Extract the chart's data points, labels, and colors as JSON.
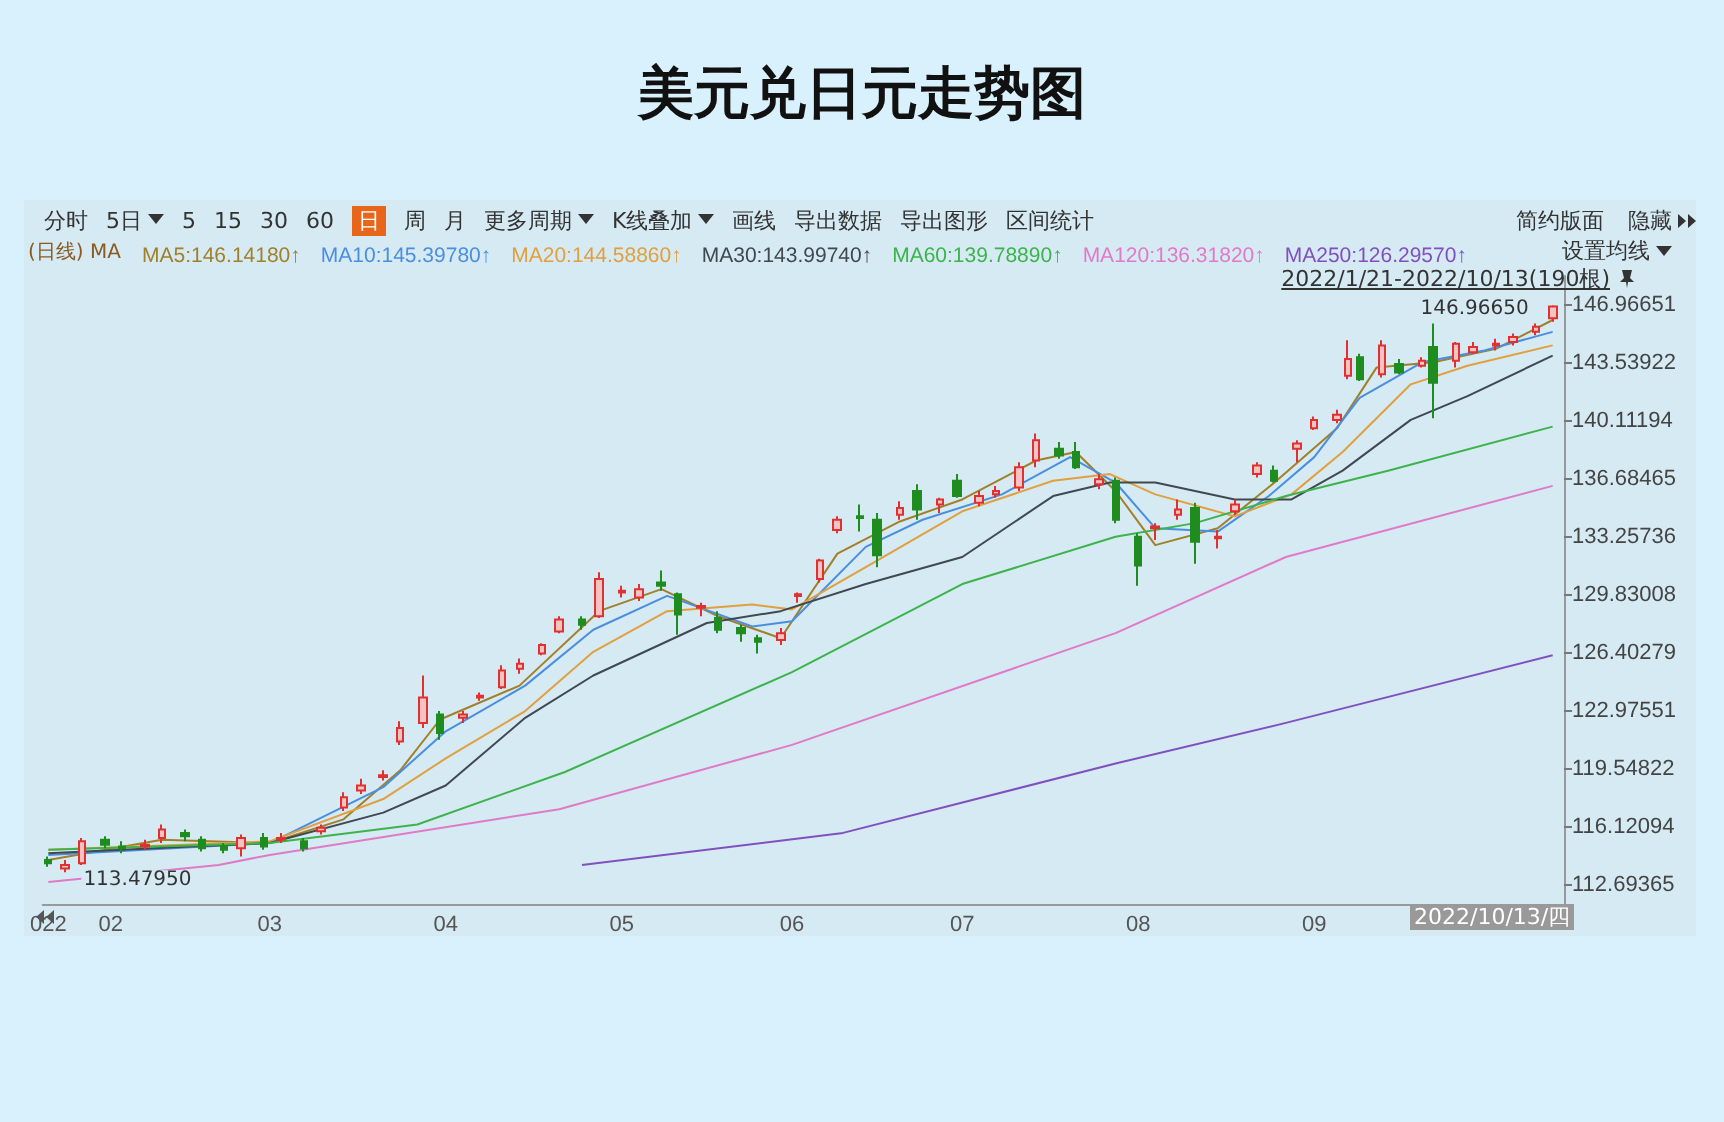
{
  "chart_data": {
    "type": "candlestick",
    "title": "美元兑日元走势图",
    "x": [
      "2022-01-21",
      "2022-01-24",
      "2022-01-27",
      "2022-01-31",
      "2022-02-03",
      "2022-02-07",
      "2022-02-10",
      "2022-02-14",
      "2022-02-17",
      "2022-02-21",
      "2022-02-24",
      "2022-02-28",
      "2022-03-03",
      "2022-03-07",
      "2022-03-10",
      "2022-03-14",
      "2022-03-17",
      "2022-03-21",
      "2022-03-24",
      "2022-03-28",
      "2022-03-31",
      "2022-04-04",
      "2022-04-07",
      "2022-04-11",
      "2022-04-14",
      "2022-04-18",
      "2022-04-21",
      "2022-04-25",
      "2022-04-28",
      "2022-05-02",
      "2022-05-05",
      "2022-05-09",
      "2022-05-12",
      "2022-05-16",
      "2022-05-19",
      "2022-05-23",
      "2022-05-26",
      "2022-05-30",
      "2022-06-02",
      "2022-06-06",
      "2022-06-09",
      "2022-06-13",
      "2022-06-16",
      "2022-06-20",
      "2022-06-23",
      "2022-06-27",
      "2022-06-30",
      "2022-07-04",
      "2022-07-07",
      "2022-07-11",
      "2022-07-14",
      "2022-07-18",
      "2022-07-21",
      "2022-07-25",
      "2022-07-28",
      "2022-08-01",
      "2022-08-04",
      "2022-08-08",
      "2022-08-11",
      "2022-08-15",
      "2022-08-18",
      "2022-08-22",
      "2022-08-25",
      "2022-08-29",
      "2022-09-01",
      "2022-09-05",
      "2022-09-07",
      "2022-09-09",
      "2022-09-13",
      "2022-09-16",
      "2022-09-20",
      "2022-09-22",
      "2022-09-26",
      "2022-09-29",
      "2022-10-03",
      "2022-10-06",
      "2022-10-10",
      "2022-10-13"
    ],
    "ohlc": [
      [
        114.2,
        114.4,
        113.8,
        114.0
      ],
      [
        113.7,
        114.2,
        113.4795,
        113.9
      ],
      [
        114.0,
        115.5,
        113.9,
        115.3
      ],
      [
        115.4,
        115.6,
        114.9,
        115.1
      ],
      [
        115.0,
        115.3,
        114.6,
        114.9
      ],
      [
        115.0,
        115.4,
        114.8,
        115.1
      ],
      [
        115.5,
        116.3,
        115.2,
        116.0
      ],
      [
        115.8,
        116.0,
        115.3,
        115.6
      ],
      [
        115.4,
        115.6,
        114.7,
        114.9
      ],
      [
        115.0,
        115.2,
        114.6,
        114.8
      ],
      [
        114.9,
        115.7,
        114.4,
        115.5
      ],
      [
        115.5,
        115.8,
        114.8,
        115.0
      ],
      [
        115.4,
        115.8,
        115.2,
        115.5
      ],
      [
        115.3,
        115.5,
        114.7,
        114.9
      ],
      [
        115.9,
        116.3,
        115.7,
        116.1
      ],
      [
        117.3,
        118.2,
        117.1,
        117.9
      ],
      [
        118.3,
        119.0,
        118.1,
        118.6
      ],
      [
        119.1,
        119.5,
        118.9,
        119.2
      ],
      [
        121.2,
        122.4,
        121.0,
        122.0
      ],
      [
        122.3,
        125.1,
        122.0,
        123.8
      ],
      [
        122.8,
        123.0,
        121.3,
        121.7
      ],
      [
        122.6,
        123.0,
        122.3,
        122.8
      ],
      [
        123.8,
        124.1,
        123.6,
        123.9
      ],
      [
        124.4,
        125.7,
        124.3,
        125.4
      ],
      [
        125.5,
        126.1,
        125.2,
        125.8
      ],
      [
        126.4,
        127.0,
        126.3,
        126.9
      ],
      [
        127.7,
        128.6,
        127.6,
        128.4
      ],
      [
        128.4,
        128.6,
        127.8,
        128.1
      ],
      [
        128.6,
        131.2,
        128.5,
        130.8
      ],
      [
        130.0,
        130.4,
        129.7,
        130.1
      ],
      [
        129.7,
        130.5,
        129.5,
        130.2
      ],
      [
        130.6,
        131.3,
        130.1,
        130.4
      ],
      [
        129.9,
        130.0,
        127.5,
        128.7
      ],
      [
        129.1,
        129.4,
        128.6,
        129.2
      ],
      [
        128.5,
        128.9,
        127.6,
        127.8
      ],
      [
        127.9,
        128.1,
        127.1,
        127.6
      ],
      [
        127.3,
        127.5,
        126.4,
        127.1
      ],
      [
        127.2,
        127.9,
        126.9,
        127.6
      ],
      [
        129.8,
        130.0,
        129.4,
        129.9
      ],
      [
        130.8,
        132.0,
        130.6,
        131.9
      ],
      [
        133.7,
        134.5,
        133.5,
        134.3
      ],
      [
        134.5,
        135.2,
        133.6,
        134.4
      ],
      [
        134.3,
        134.7,
        131.5,
        132.2
      ],
      [
        134.6,
        135.4,
        134.3,
        135.0
      ],
      [
        136.0,
        136.4,
        134.3,
        134.9
      ],
      [
        135.2,
        135.6,
        134.7,
        135.5
      ],
      [
        136.6,
        137.0,
        135.6,
        135.7
      ],
      [
        135.3,
        136.0,
        135.1,
        135.7
      ],
      [
        135.8,
        136.3,
        135.6,
        136.0
      ],
      [
        136.2,
        137.7,
        136.0,
        137.4
      ],
      [
        137.8,
        139.4,
        137.4,
        139.0
      ],
      [
        138.5,
        138.9,
        137.9,
        138.1
      ],
      [
        138.3,
        138.9,
        137.3,
        137.4
      ],
      [
        136.4,
        137.0,
        136.1,
        136.7
      ],
      [
        136.6,
        136.8,
        134.1,
        134.3
      ],
      [
        133.3,
        133.5,
        130.4,
        131.6
      ],
      [
        133.8,
        134.1,
        133.1,
        133.9
      ],
      [
        134.6,
        135.5,
        134.3,
        134.9
      ],
      [
        135.0,
        135.3,
        131.7,
        133.0
      ],
      [
        133.2,
        133.7,
        132.6,
        133.3
      ],
      [
        134.8,
        135.5,
        134.6,
        135.2
      ],
      [
        137.0,
        137.7,
        136.8,
        137.5
      ],
      [
        137.2,
        137.5,
        136.5,
        136.6
      ],
      [
        138.5,
        139.0,
        137.7,
        138.8
      ],
      [
        139.7,
        140.4,
        139.6,
        140.2
      ],
      [
        140.2,
        140.8,
        140.0,
        140.5
      ],
      [
        142.8,
        144.9,
        142.6,
        143.8
      ],
      [
        143.9,
        144.1,
        142.5,
        142.6
      ],
      [
        142.9,
        144.9,
        142.7,
        144.6
      ],
      [
        143.5,
        143.8,
        142.9,
        143.0
      ],
      [
        143.4,
        143.9,
        143.3,
        143.7
      ],
      [
        144.5,
        145.9,
        140.3,
        142.4
      ],
      [
        143.7,
        144.8,
        143.3,
        144.7
      ],
      [
        144.2,
        144.8,
        144.1,
        144.5
      ],
      [
        144.6,
        145.0,
        144.3,
        144.7
      ],
      [
        144.8,
        145.3,
        144.6,
        145.1
      ],
      [
        145.4,
        145.9,
        145.2,
        145.7
      ],
      [
        146.2,
        146.9665,
        146.0,
        146.9
      ]
    ],
    "series": [
      {
        "type": "line",
        "name": "MA5:146.14180↑",
        "color": "#a0802a",
        "x": [
          "2022-01-21",
          "2022-02-10",
          "2022-03-01",
          "2022-03-14",
          "2022-03-24",
          "2022-03-31",
          "2022-04-14",
          "2022-04-28",
          "2022-05-09",
          "2022-05-19",
          "2022-05-30",
          "2022-06-09",
          "2022-06-20",
          "2022-07-01",
          "2022-07-14",
          "2022-07-21",
          "2022-07-28",
          "2022-08-04",
          "2022-08-15",
          "2022-08-25",
          "2022-09-05",
          "2022-09-12",
          "2022-09-22",
          "2022-10-03",
          "2022-10-13"
        ],
        "values": [
          114.2,
          115.4,
          115.2,
          116.6,
          119.5,
          122.5,
          124.5,
          128.9,
          130.2,
          128.6,
          127.3,
          132.3,
          134.2,
          135.5,
          137.8,
          138.3,
          136.0,
          132.8,
          133.8,
          136.5,
          139.7,
          143.3,
          143.6,
          144.4,
          146.1
        ]
      },
      {
        "type": "line",
        "name": "MA10:145.39780↑",
        "color": "#4a8ee0",
        "x": [
          "2022-01-21",
          "2022-03-01",
          "2022-03-21",
          "2022-04-01",
          "2022-04-15",
          "2022-04-27",
          "2022-05-10",
          "2022-05-25",
          "2022-06-01",
          "2022-06-14",
          "2022-06-24",
          "2022-07-08",
          "2022-07-20",
          "2022-07-28",
          "2022-08-04",
          "2022-08-15",
          "2022-08-24",
          "2022-09-01",
          "2022-09-09",
          "2022-09-20",
          "2022-10-01",
          "2022-10-13"
        ],
        "values": [
          114.5,
          115.2,
          118.5,
          121.8,
          124.5,
          127.8,
          129.8,
          128.0,
          128.3,
          132.7,
          134.3,
          135.8,
          138.0,
          136.5,
          133.8,
          133.6,
          135.7,
          138.0,
          141.5,
          143.6,
          144.3,
          145.4
        ]
      },
      {
        "type": "line",
        "name": "MA20:144.58860↑",
        "color": "#e0a040",
        "x": [
          "2022-01-21",
          "2022-03-01",
          "2022-03-21",
          "2022-04-01",
          "2022-04-15",
          "2022-04-27",
          "2022-05-10",
          "2022-05-25",
          "2022-06-01",
          "2022-06-14",
          "2022-07-01",
          "2022-07-17",
          "2022-07-27",
          "2022-08-04",
          "2022-08-18",
          "2022-08-28",
          "2022-09-06",
          "2022-09-18",
          "2022-09-28",
          "2022-10-13"
        ],
        "values": [
          114.8,
          115.3,
          117.8,
          120.2,
          123.0,
          126.5,
          128.9,
          129.3,
          129.0,
          131.5,
          134.8,
          136.6,
          137.0,
          135.8,
          134.5,
          135.8,
          138.3,
          142.3,
          143.4,
          144.6
        ]
      },
      {
        "type": "line",
        "name": "MA30:143.99740↑",
        "color": "#404850",
        "x": [
          "2022-01-21",
          "2022-02-15",
          "2022-03-01",
          "2022-03-21",
          "2022-04-01",
          "2022-04-15",
          "2022-04-27",
          "2022-05-17",
          "2022-05-30",
          "2022-06-14",
          "2022-07-01",
          "2022-07-17",
          "2022-07-27",
          "2022-08-04",
          "2022-08-18",
          "2022-08-28",
          "2022-09-06",
          "2022-09-18",
          "2022-09-28",
          "2022-10-13"
        ],
        "values": [
          114.6,
          115.0,
          115.2,
          117.0,
          118.6,
          122.6,
          125.1,
          128.2,
          128.9,
          130.5,
          132.1,
          135.7,
          136.5,
          136.5,
          135.5,
          135.5,
          137.2,
          140.2,
          141.6,
          144.0
        ]
      },
      {
        "type": "line",
        "name": "MA60:139.78890↑",
        "color": "#3cb44b",
        "x": [
          "2022-01-21",
          "2022-03-01",
          "2022-03-27",
          "2022-04-22",
          "2022-06-01",
          "2022-07-01",
          "2022-07-28",
          "2022-08-11",
          "2022-08-27",
          "2022-09-14",
          "2022-10-13"
        ],
        "values": [
          114.8,
          115.2,
          116.3,
          119.4,
          125.3,
          130.5,
          133.3,
          134.1,
          135.7,
          137.2,
          139.8
        ]
      },
      {
        "type": "line",
        "name": "MA120:136.31820↑",
        "color": "#e07ac8",
        "x": [
          "2022-01-21",
          "2022-02-20",
          "2022-03-01",
          "2022-04-21",
          "2022-06-01",
          "2022-07-28",
          "2022-08-27",
          "2022-10-13"
        ],
        "values": [
          112.9,
          113.9,
          114.5,
          117.2,
          121.0,
          127.6,
          132.1,
          136.3
        ]
      },
      {
        "type": "line",
        "name": "MA250:126.29570↑",
        "color": "#8050c0",
        "x": [
          "2022-04-25",
          "2022-06-10",
          "2022-07-28",
          "2022-08-27",
          "2022-10-13"
        ],
        "values": [
          113.9,
          115.8,
          119.9,
          122.3,
          126.3
        ]
      }
    ],
    "marker": "none",
    "legend": "top left",
    "xlim": [
      "2022-01-20",
      "2022-10-15"
    ],
    "xticks": [
      {
        "value": "2022-01-21",
        "label": "022"
      },
      {
        "value": "2022-02-01",
        "label": "02"
      },
      {
        "value": "2022-03-01",
        "label": "03"
      },
      {
        "value": "2022-04-01",
        "label": "04"
      },
      {
        "value": "2022-05-02",
        "label": "05"
      },
      {
        "value": "2022-06-01",
        "label": "06"
      },
      {
        "value": "2022-07-01",
        "label": "07"
      },
      {
        "value": "2022-08-01",
        "label": "08"
      },
      {
        "value": "2022-09-01",
        "label": "09"
      }
    ],
    "ylim": [
      111.6,
      148.7
    ],
    "yticks": [
      112.69365,
      116.12094,
      119.54822,
      122.97551,
      126.40279,
      129.83008,
      133.25736,
      136.68465,
      140.11194,
      143.53922,
      146.96651
    ],
    "annotations": [
      "分时",
      "5日",
      "5",
      "15",
      "30",
      "60",
      "日",
      "周",
      "月",
      "更多周期",
      "K线叠加",
      "画线",
      "导出数据",
      "导出图形",
      "区间统计",
      "简约版面",
      "隐藏",
      "(日线) MA",
      "设置均线",
      "2022/1/21-2022/10/13(190根)",
      "2022/10/13/四",
      "146.96650",
      "113.47950"
    ]
  }
}
